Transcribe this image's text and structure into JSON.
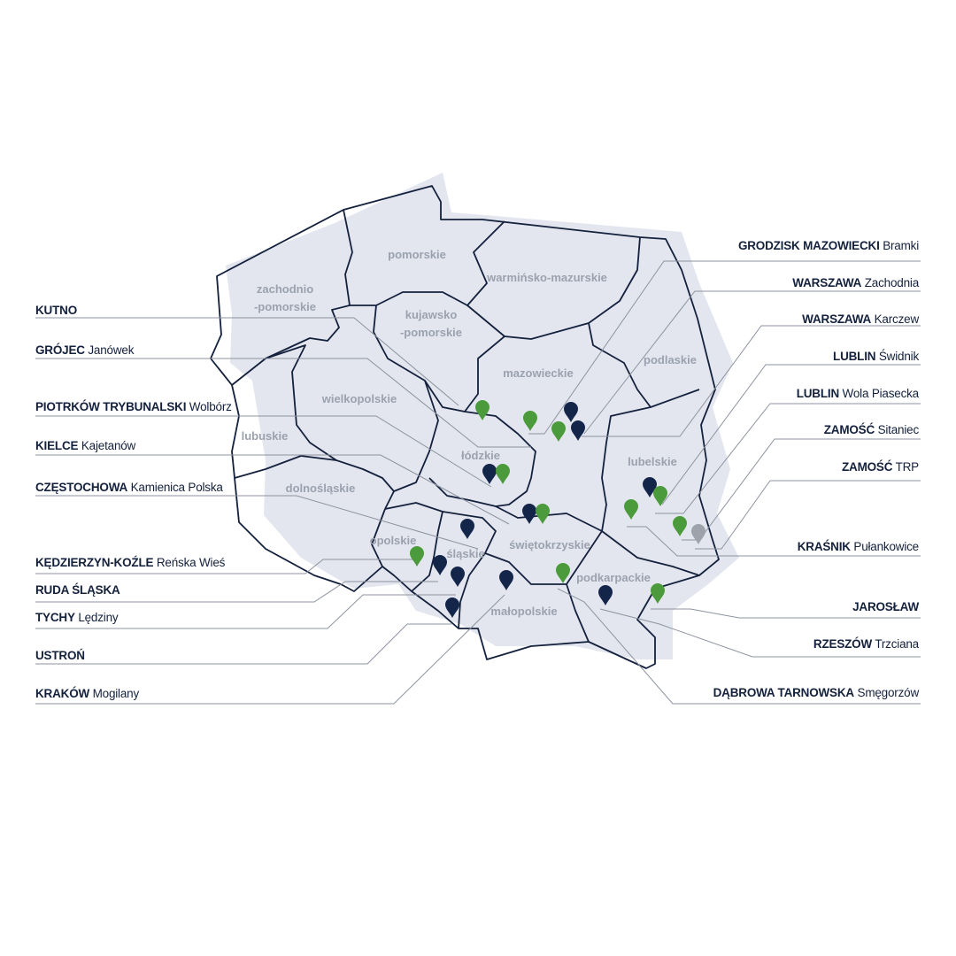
{
  "regions": [
    "pomorskie",
    "zachodnio",
    "-pomorskie",
    "warmińsko-mazurskie",
    "kujawsko",
    "-pomorskie",
    "podlaskie",
    "mazowieckie",
    "wielkopolskie",
    "lubuskie",
    "łódzkie",
    "lubelskie",
    "dolnośląskie",
    "opolskie",
    "śląskie",
    "świętokrzyskie",
    "podkarpackie",
    "małopolskie"
  ],
  "left_labels": [
    {
      "city": "KUTNO",
      "place": ""
    },
    {
      "city": "GRÓJEC",
      "place": "Janówek"
    },
    {
      "city": "PIOTRKÓW TRYBUNALSKI",
      "place": "Wolbórz"
    },
    {
      "city": "KIELCE",
      "place": "Kajetanów"
    },
    {
      "city": "CZĘSTOCHOWA",
      "place": "Kamienica Polska"
    },
    {
      "city": "KĘDZIERZYN-KOŹLE",
      "place": "Reńska Wieś"
    },
    {
      "city": "RUDA ŚLĄSKA",
      "place": ""
    },
    {
      "city": "TYCHY",
      "place": "Lędziny"
    },
    {
      "city": "USTROŃ",
      "place": ""
    },
    {
      "city": "KRAKÓW",
      "place": "Mogilany"
    }
  ],
  "right_labels": [
    {
      "city": "GRODZISK MAZOWIECKI",
      "place": "Bramki"
    },
    {
      "city": "WARSZAWA",
      "place": "Zachodnia"
    },
    {
      "city": "WARSZAWA",
      "place": "Karczew"
    },
    {
      "city": "LUBLIN",
      "place": "Świdnik"
    },
    {
      "city": "LUBLIN",
      "place": "Wola Piasecka"
    },
    {
      "city": "ZAMOŚĆ",
      "place": "Sitaniec"
    },
    {
      "city": "ZAMOŚĆ",
      "place": "TRP"
    },
    {
      "city": "KRAŚNIK",
      "place": "Pułankowice"
    },
    {
      "city": "JAROSŁAW",
      "place": ""
    },
    {
      "city": "RZESZÓW",
      "place": "Trzciana"
    },
    {
      "city": "DĄBROWA TARNOWSKA",
      "place": "Smęgorzów"
    }
  ],
  "colors": {
    "navy": "#14254a",
    "green": "#4b9a3b",
    "gray": "#9ea3ab",
    "land": "#e3e6ee",
    "leader": "#8d93a0"
  }
}
